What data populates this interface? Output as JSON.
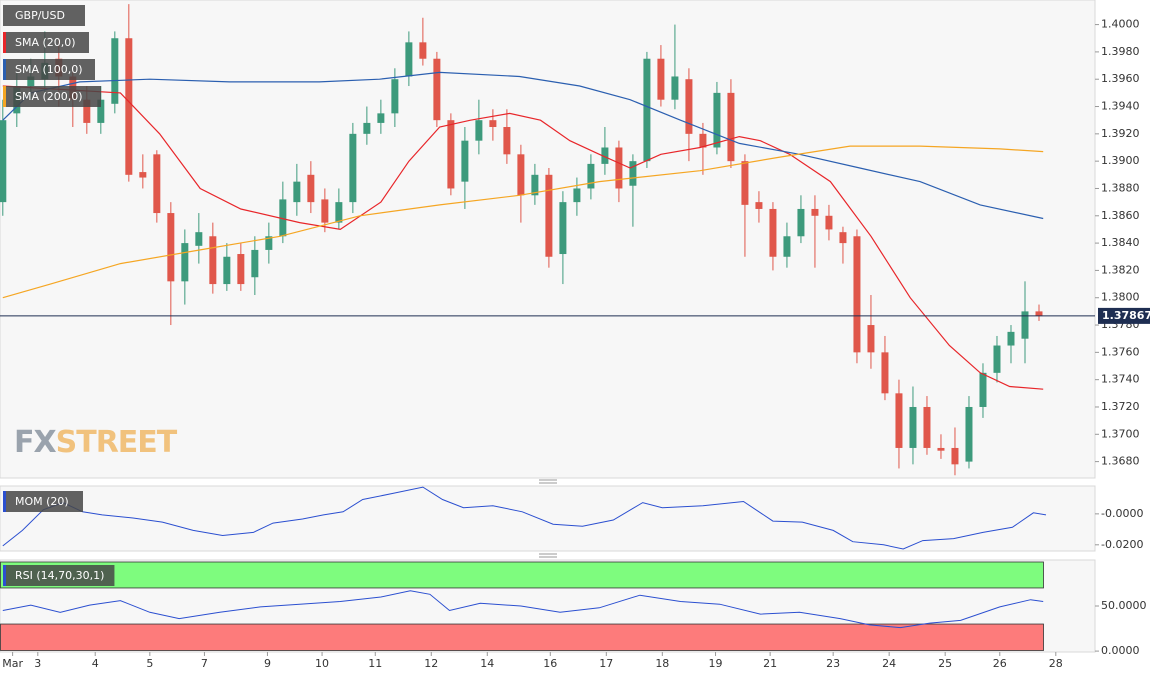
{
  "chart_data": [
    {
      "type": "candlestick",
      "title": "GBP/USD",
      "watermark": [
        "FX",
        "STREET"
      ],
      "up_color": "#3d9a7c",
      "down_color": "#e0574b",
      "open": [
        1.387,
        1.3935,
        1.3955,
        1.396,
        1.3975,
        1.3962,
        1.3945,
        1.3928,
        1.3942,
        1.399,
        1.3892,
        1.3905,
        1.3862,
        1.3812,
        1.3838,
        1.3845,
        1.381,
        1.3832,
        1.3815,
        1.3835,
        1.3845,
        1.387,
        1.389,
        1.3872,
        1.3855,
        1.387,
        1.392,
        1.3928,
        1.3935,
        1.3962,
        1.3987,
        1.3975,
        1.393,
        1.3885,
        1.3915,
        1.393,
        1.3925,
        1.3905,
        1.3875,
        1.389,
        1.3832,
        1.387,
        1.388,
        1.3898,
        1.391,
        1.3882,
        1.39,
        1.3975,
        1.3945,
        1.396,
        1.392,
        1.391,
        1.395,
        1.39,
        1.387,
        1.3865,
        1.383,
        1.3845,
        1.3865,
        1.386,
        1.3848,
        1.3845,
        1.378,
        1.376,
        1.373,
        1.369,
        1.372,
        1.369,
        1.369,
        1.368,
        1.372,
        1.3745,
        1.3765,
        1.377,
        1.379
      ],
      "high": [
        1.3945,
        1.3965,
        1.3975,
        1.3995,
        1.399,
        1.397,
        1.3955,
        1.3955,
        1.3995,
        1.4015,
        1.3905,
        1.3908,
        1.387,
        1.385,
        1.3862,
        1.3855,
        1.384,
        1.384,
        1.3845,
        1.3855,
        1.3885,
        1.3898,
        1.39,
        1.388,
        1.388,
        1.3928,
        1.394,
        1.3945,
        1.3968,
        1.3995,
        1.4005,
        1.398,
        1.3935,
        1.3925,
        1.3945,
        1.3938,
        1.3938,
        1.3912,
        1.3898,
        1.3895,
        1.3878,
        1.3888,
        1.3905,
        1.3925,
        1.3915,
        1.3905,
        1.398,
        1.3985,
        1.4,
        1.3968,
        1.3928,
        1.3958,
        1.396,
        1.3905,
        1.3878,
        1.387,
        1.3855,
        1.3875,
        1.3875,
        1.3868,
        1.3852,
        1.385,
        1.3802,
        1.3772,
        1.374,
        1.3735,
        1.3728,
        1.37,
        1.3705,
        1.3728,
        1.3752,
        1.3772,
        1.378,
        1.3812,
        1.3795
      ],
      "low": [
        1.386,
        1.3925,
        1.3945,
        1.395,
        1.394,
        1.3925,
        1.392,
        1.392,
        1.3935,
        1.3885,
        1.388,
        1.3855,
        1.378,
        1.3795,
        1.3825,
        1.3803,
        1.3805,
        1.3805,
        1.3802,
        1.3825,
        1.384,
        1.386,
        1.3862,
        1.3848,
        1.385,
        1.3862,
        1.3912,
        1.392,
        1.3925,
        1.3955,
        1.397,
        1.3925,
        1.3875,
        1.3865,
        1.3905,
        1.3915,
        1.3898,
        1.3855,
        1.3868,
        1.3822,
        1.381,
        1.386,
        1.3872,
        1.389,
        1.387,
        1.3852,
        1.3895,
        1.394,
        1.3938,
        1.39,
        1.389,
        1.3905,
        1.3895,
        1.383,
        1.3855,
        1.382,
        1.3822,
        1.384,
        1.3822,
        1.3842,
        1.3825,
        1.3752,
        1.3748,
        1.3725,
        1.3675,
        1.3678,
        1.3685,
        1.3682,
        1.367,
        1.3675,
        1.3712,
        1.3738,
        1.3752,
        1.3752,
        1.3783
      ],
      "close": [
        1.393,
        1.3955,
        1.3962,
        1.3972,
        1.3962,
        1.3945,
        1.3928,
        1.3945,
        1.399,
        1.389,
        1.3888,
        1.3862,
        1.3812,
        1.384,
        1.3848,
        1.381,
        1.383,
        1.381,
        1.3835,
        1.3845,
        1.3872,
        1.3885,
        1.387,
        1.3855,
        1.387,
        1.392,
        1.3928,
        1.3935,
        1.396,
        1.3987,
        1.3975,
        1.393,
        1.388,
        1.3915,
        1.393,
        1.3925,
        1.3905,
        1.3875,
        1.389,
        1.383,
        1.387,
        1.388,
        1.3898,
        1.391,
        1.388,
        1.39,
        1.3975,
        1.3945,
        1.3962,
        1.392,
        1.391,
        1.395,
        1.39,
        1.3868,
        1.3865,
        1.383,
        1.3845,
        1.3865,
        1.386,
        1.385,
        1.384,
        1.376,
        1.376,
        1.373,
        1.369,
        1.372,
        1.369,
        1.3688,
        1.3678,
        1.372,
        1.3745,
        1.3765,
        1.3775,
        1.379,
        1.37867
      ],
      "series": [
        {
          "name": "SMA (20,0)",
          "color": "#e8262a",
          "x": [
            0,
            8.4,
            11.2,
            14.1,
            17,
            21.2,
            24.1,
            27,
            29,
            31.2,
            33.4,
            36.2,
            38.4,
            40.5,
            42.6,
            44.8,
            47,
            49.8,
            52.6,
            54.1,
            56.2,
            59.1,
            62,
            64.8,
            67.6,
            69.8,
            71.9,
            74.3
          ],
          "values": [
            1.3955,
            1.395,
            1.392,
            1.388,
            1.3865,
            1.3855,
            1.385,
            1.387,
            1.39,
            1.3925,
            1.393,
            1.3935,
            1.393,
            1.3915,
            1.3905,
            1.3895,
            1.3905,
            1.391,
            1.3918,
            1.3915,
            1.3905,
            1.3885,
            1.3845,
            1.38,
            1.3765,
            1.3745,
            1.3735,
            1.3733
          ]
        },
        {
          "name": "SMA (100,0)",
          "color": "#2b5fb0",
          "x": [
            0,
            2,
            5.5,
            10.5,
            16.2,
            22.6,
            26.9,
            31.2,
            36.9,
            41.2,
            44.8,
            48.4,
            52.6,
            56.9,
            61.2,
            65.5,
            69.8,
            74.3
          ],
          "values": [
            1.393,
            1.395,
            1.3958,
            1.396,
            1.3958,
            1.3958,
            1.396,
            1.3965,
            1.3962,
            1.3955,
            1.3945,
            1.393,
            1.3913,
            1.3905,
            1.3895,
            1.3885,
            1.3868,
            1.3858
          ]
        },
        {
          "name": "SMA (200,0)",
          "color": "#f5a623",
          "x": [
            0,
            3.4,
            8.4,
            14.1,
            19.8,
            25.5,
            31.2,
            36.9,
            42.6,
            49.8,
            55.5,
            60.5,
            65.5,
            71.2,
            74.3
          ],
          "values": [
            1.38,
            1.381,
            1.3825,
            1.3835,
            1.3845,
            1.386,
            1.3868,
            1.3875,
            1.3885,
            1.3893,
            1.3903,
            1.3911,
            1.3911,
            1.3909,
            1.3907
          ]
        }
      ],
      "last_price": 1.37867,
      "xlim": [
        -0.2,
        78
      ],
      "ylim": [
        1.3668,
        1.4018
      ],
      "yticks": [
        {
          "value": 1.368,
          "label": "1.3680"
        },
        {
          "value": 1.37,
          "label": "1.3700"
        },
        {
          "value": 1.372,
          "label": "1.3720"
        },
        {
          "value": 1.374,
          "label": "1.3740"
        },
        {
          "value": 1.376,
          "label": "1.3760"
        },
        {
          "value": 1.378,
          "label": "1.3780"
        },
        {
          "value": 1.38,
          "label": "1.3800"
        },
        {
          "value": 1.382,
          "label": "1.3820"
        },
        {
          "value": 1.384,
          "label": "1.3840"
        },
        {
          "value": 1.386,
          "label": "1.3860"
        },
        {
          "value": 1.388,
          "label": "1.3880"
        },
        {
          "value": 1.39,
          "label": "1.3900"
        },
        {
          "value": 1.392,
          "label": "1.3920"
        },
        {
          "value": 1.394,
          "label": "1.3940"
        },
        {
          "value": 1.396,
          "label": "1.3960"
        },
        {
          "value": 1.398,
          "label": "1.3980"
        },
        {
          "value": 1.4,
          "label": "1.4000"
        }
      ]
    },
    {
      "type": "line",
      "title": "MOM (20)",
      "color": "#2b4fd0",
      "x": [
        0,
        1.4,
        2.9,
        4.3,
        5.7,
        7.1,
        9.3,
        11.4,
        13.6,
        15.7,
        17.9,
        19.3,
        21.4,
        22.9,
        24.3,
        25.7,
        27.9,
        30,
        31.4,
        32.9,
        35,
        37.1,
        39.3,
        41.4,
        43.6,
        45.7,
        47.1,
        50,
        52.9,
        55,
        57.1,
        59.3,
        60.7,
        62.9,
        64.3,
        65.7,
        67.9,
        70,
        72.1,
        73.6,
        74.5
      ],
      "values": [
        -0.0207,
        -0.0107,
        0.0027,
        0.0073,
        0.0013,
        -0.0007,
        -0.0027,
        -0.0053,
        -0.0107,
        -0.014,
        -0.012,
        -0.006,
        -0.0033,
        -0.0007,
        0.0013,
        0.0093,
        0.0133,
        0.0173,
        0.0093,
        0.004,
        0.0053,
        0.0013,
        -0.0067,
        -0.008,
        -0.004,
        0.0073,
        0.004,
        0.0053,
        0.008,
        -0.0047,
        -0.0053,
        -0.0107,
        -0.018,
        -0.02,
        -0.0227,
        -0.0173,
        -0.016,
        -0.012,
        -0.0087,
        0.0007,
        -0.0007
      ],
      "xlim": [
        -0.2,
        78
      ],
      "ylim": [
        -0.024,
        0.018
      ],
      "yticks": [
        {
          "value": 0,
          "label": "-0.0000"
        },
        {
          "value": -0.02,
          "label": "-0.0200"
        }
      ]
    },
    {
      "type": "line",
      "title": "RSI (14,70,30,1)",
      "color": "#2b4fd0",
      "levels": [
        30,
        70
      ],
      "level_colors": [
        "#fd7b7b",
        "#7efc7e"
      ],
      "x": [
        0,
        2,
        4.1,
        6.2,
        8.4,
        10.5,
        12.6,
        15.5,
        18.4,
        21.2,
        24.1,
        27,
        29.1,
        30.5,
        31.9,
        34.1,
        37,
        39.8,
        42.6,
        45.5,
        48.4,
        51.2,
        54.1,
        56.9,
        59.8,
        61.9,
        64.1,
        66.2,
        68.4,
        71.2,
        73.4,
        74.3
      ],
      "values": [
        45,
        51,
        43,
        51,
        56,
        43,
        36,
        43,
        49,
        52,
        55,
        60,
        67,
        63,
        45,
        53,
        50,
        43,
        48,
        62,
        55,
        52,
        41,
        43,
        36,
        29,
        26,
        31,
        34,
        49,
        57,
        55
      ],
      "xlim": [
        -0.2,
        78
      ],
      "ylim": [
        -1,
        101
      ],
      "yticks": [
        {
          "value": 0,
          "label": "0.0000"
        },
        {
          "value": 50,
          "label": "50.0000"
        }
      ],
      "xticks": [
        {
          "value": 0.7,
          "label": "Mar"
        },
        {
          "value": 2.5,
          "label": "3"
        },
        {
          "value": 6.6,
          "label": "4"
        },
        {
          "value": 10.5,
          "label": "5"
        },
        {
          "value": 14.4,
          "label": "7"
        },
        {
          "value": 18.9,
          "label": "9"
        },
        {
          "value": 22.8,
          "label": "10"
        },
        {
          "value": 26.6,
          "label": "11"
        },
        {
          "value": 30.6,
          "label": "12"
        },
        {
          "value": 34.6,
          "label": "14"
        },
        {
          "value": 39.1,
          "label": "16"
        },
        {
          "value": 43.1,
          "label": "17"
        },
        {
          "value": 47.1,
          "label": "18"
        },
        {
          "value": 50.9,
          "label": "19"
        },
        {
          "value": 54.8,
          "label": "21"
        },
        {
          "value": 59.3,
          "label": "23"
        },
        {
          "value": 63.3,
          "label": "24"
        },
        {
          "value": 67.3,
          "label": "25"
        },
        {
          "value": 71.2,
          "label": "26"
        },
        {
          "value": 75.2,
          "label": "28"
        }
      ]
    }
  ]
}
